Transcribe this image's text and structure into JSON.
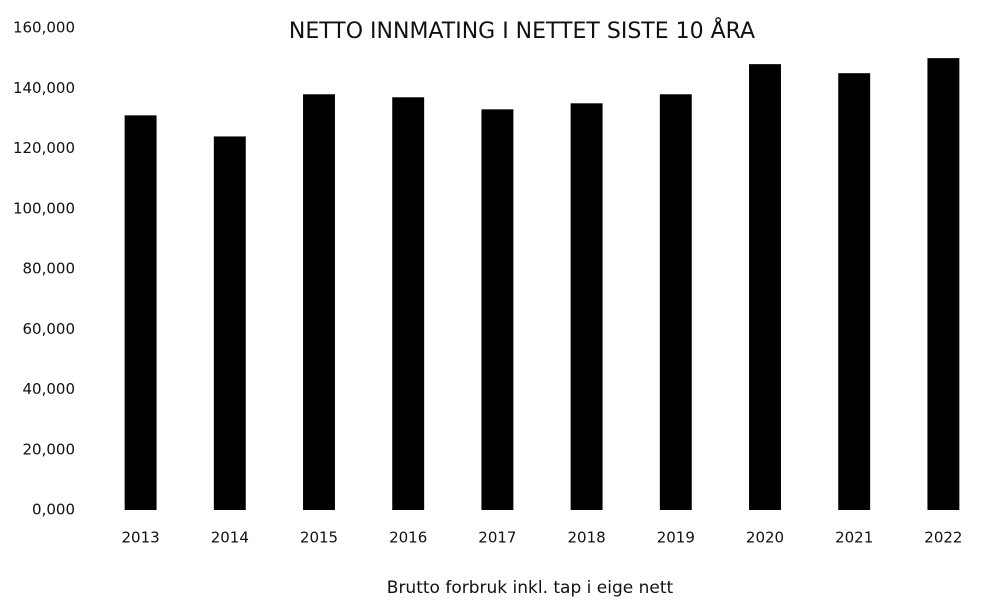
{
  "chart_data": {
    "type": "bar",
    "title": "NETTO INNMATING I NETTET SISTE 10 ÅRA",
    "x_label": "Brutto forbruk inkl. tap i eige nett",
    "categories": [
      "2013",
      "2014",
      "2015",
      "2016",
      "2017",
      "2018",
      "2019",
      "2020",
      "2021",
      "2022"
    ],
    "values": [
      131000,
      124000,
      138000,
      137000,
      133000,
      135000,
      138000,
      148000,
      145000,
      150000
    ],
    "color": "#000000",
    "ylim": [
      0,
      160000
    ],
    "yticks": [
      {
        "value": 0,
        "label": "0,000"
      },
      {
        "value": 20000,
        "label": "20,000"
      },
      {
        "value": 40000,
        "label": "40,000"
      },
      {
        "value": 60000,
        "label": "60,000"
      },
      {
        "value": 80000,
        "label": "80,000"
      },
      {
        "value": 100000,
        "label": "100,000"
      },
      {
        "value": 120000,
        "label": "120,000"
      },
      {
        "value": 140000,
        "label": "140,000"
      },
      {
        "value": 160000,
        "label": "160,000"
      }
    ],
    "grid": false
  }
}
